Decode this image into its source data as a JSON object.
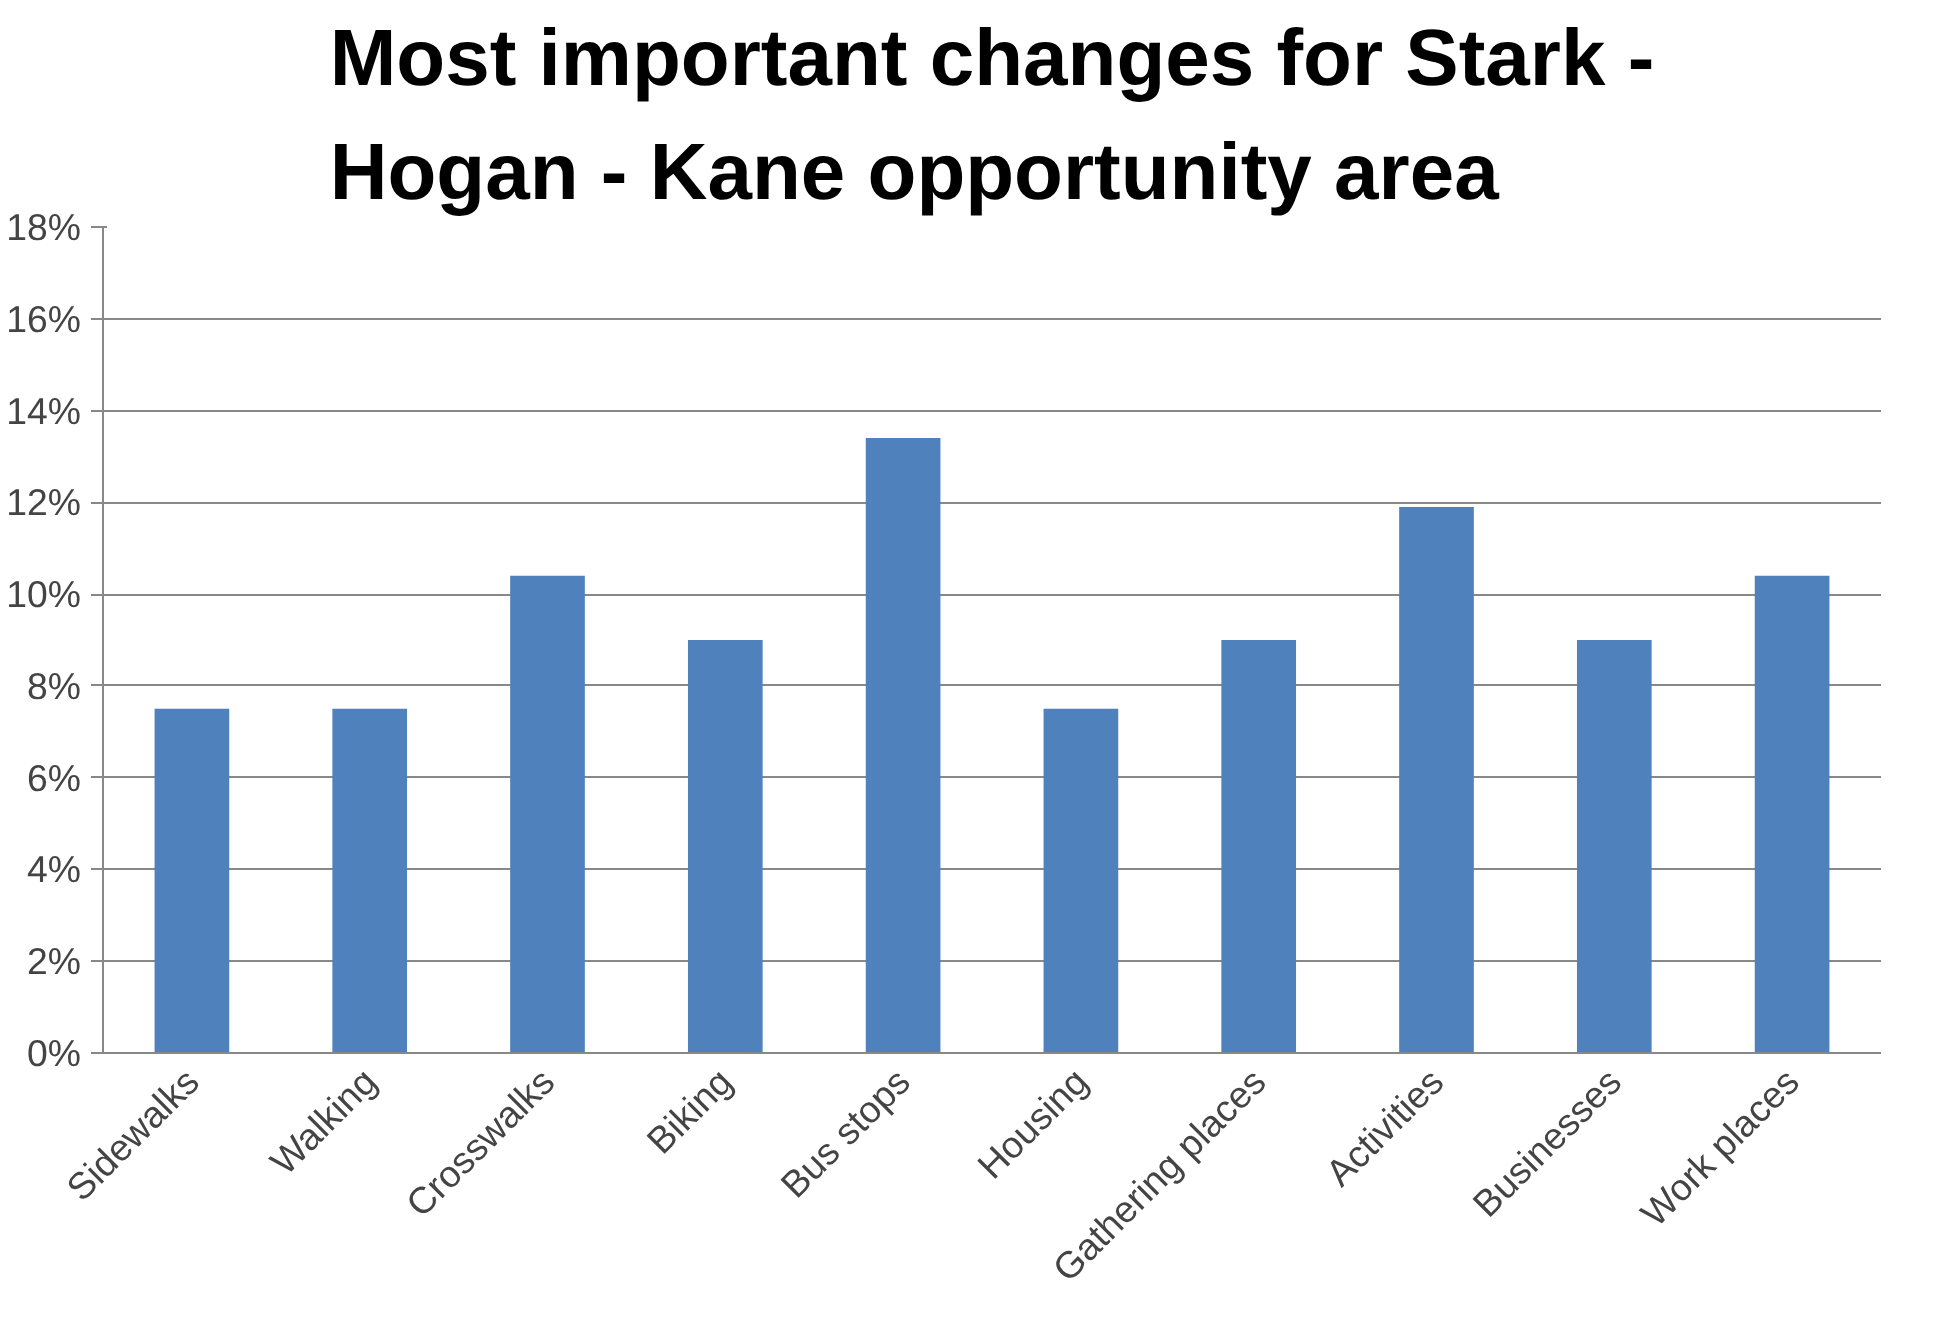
{
  "chart_data": {
    "type": "bar",
    "title": "Most important changes for Stark -\nHogan - Kane opportunity area",
    "categories": [
      "Sidewalks",
      "Walking",
      "Crosswalks",
      "Biking",
      "Bus stops",
      "Housing",
      "Gathering places",
      "Activities",
      "Businesses",
      "Work places"
    ],
    "values": [
      7.5,
      7.5,
      10.4,
      9.0,
      13.4,
      7.5,
      9.0,
      11.9,
      9.0,
      10.4
    ],
    "color": "#4f81bd",
    "ylim": [
      0,
      18
    ],
    "yticks": [
      {
        "value": 0,
        "label": "0%"
      },
      {
        "value": 2,
        "label": "2%"
      },
      {
        "value": 4,
        "label": "4%"
      },
      {
        "value": 6,
        "label": "6%"
      },
      {
        "value": 8,
        "label": "8%"
      },
      {
        "value": 10,
        "label": "10%"
      },
      {
        "value": 12,
        "label": "12%"
      },
      {
        "value": 14,
        "label": "14%"
      },
      {
        "value": 16,
        "label": "16%"
      },
      {
        "value": 18,
        "label": "18%"
      }
    ],
    "grid": "y"
  }
}
